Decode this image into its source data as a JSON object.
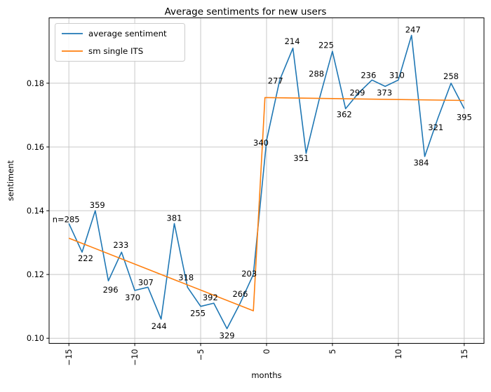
{
  "title": "Average sentiments for new users",
  "xlabel": "months",
  "ylabel": "sentiment",
  "legend": {
    "position": "upper left",
    "entries": [
      {
        "label": "average sentiment",
        "color": "#1f77b4"
      },
      {
        "label": "sm single ITS",
        "color": "#ff7f0e"
      }
    ]
  },
  "colors": {
    "series_blue": "#1f77b4",
    "series_orange": "#ff7f0e",
    "grid": "#c8c8c8",
    "frame": "#000000",
    "text": "#000000",
    "legend_border": "#cccccc"
  },
  "axes": {
    "x_ticks": [
      {
        "value": -15,
        "label": "−15"
      },
      {
        "value": -10,
        "label": "−10"
      },
      {
        "value": -5,
        "label": "−5"
      },
      {
        "value": 0,
        "label": "0"
      },
      {
        "value": 5,
        "label": "5"
      },
      {
        "value": 10,
        "label": "10"
      },
      {
        "value": 15,
        "label": "15"
      }
    ],
    "y_ticks": [
      {
        "value": 0.1,
        "label": "0.10"
      },
      {
        "value": 0.12,
        "label": "0.12"
      },
      {
        "value": 0.14,
        "label": "0.14"
      },
      {
        "value": 0.16,
        "label": "0.16"
      },
      {
        "value": 0.18,
        "label": "0.18"
      }
    ]
  },
  "chart_data": {
    "type": "line",
    "title": "Average sentiments for new users",
    "xlabel": "months",
    "ylabel": "sentiment",
    "xlim": [
      -16.5,
      16.5
    ],
    "ylim": [
      0.0984,
      0.2005
    ],
    "grid": true,
    "legend_position": "upper left",
    "series": [
      {
        "name": "average sentiment",
        "color": "#1f77b4",
        "x": [
          -15,
          -14,
          -13,
          -12,
          -11,
          -10,
          -9,
          -8,
          -7,
          -6,
          -5,
          -4,
          -3,
          -2,
          -1,
          0,
          1,
          2,
          3,
          4,
          5,
          6,
          7,
          8,
          9,
          10,
          11,
          12,
          13,
          14,
          15
        ],
        "y": [
          0.136,
          0.127,
          0.14,
          0.118,
          0.127,
          0.115,
          0.116,
          0.106,
          0.136,
          0.116,
          0.11,
          0.111,
          0.103,
          0.111,
          0.12,
          0.162,
          0.181,
          0.191,
          0.158,
          0.175,
          0.19,
          0.172,
          0.177,
          0.181,
          0.179,
          0.181,
          0.195,
          0.157,
          0.169,
          0.18,
          0.172
        ],
        "point_labels": [
          "n=285",
          "222",
          "359",
          "296",
          "233",
          "370",
          "307",
          "244",
          "381",
          "318",
          "255",
          "392",
          "329",
          "266",
          "203",
          "340",
          "277",
          "214",
          "351",
          "288",
          "225",
          "362",
          "299",
          "236",
          "373",
          "310",
          "247",
          "384",
          "321",
          "258",
          "395"
        ],
        "label_offsets": [
          [
            -4,
            -6
          ],
          [
            5,
            9
          ],
          [
            3,
            -8
          ],
          [
            3,
            13
          ],
          [
            -1,
            -10
          ],
          [
            -3,
            10
          ],
          [
            -3,
            -7
          ],
          [
            -3,
            10
          ],
          [
            0,
            -8
          ],
          [
            -2,
            -14
          ],
          [
            -4,
            10
          ],
          [
            -5,
            -8
          ],
          [
            0,
            10
          ],
          [
            0,
            -13
          ],
          [
            -6,
            -1
          ],
          [
            -8,
            3
          ],
          [
            -6,
            1
          ],
          [
            -1,
            -10
          ],
          [
            -7,
            7
          ],
          [
            -4,
            -36
          ],
          [
            -9,
            -9
          ],
          [
            -2,
            8
          ],
          [
            -2,
            0
          ],
          [
            -5,
            -7
          ],
          [
            -1,
            9
          ],
          [
            -2,
            -7
          ],
          [
            2,
            -8
          ],
          [
            -5,
            9
          ],
          [
            -3,
            13
          ],
          [
            0,
            -10
          ],
          [
            0,
            12
          ]
        ]
      },
      {
        "name": "sm single ITS",
        "color": "#ff7f0e",
        "x": [
          -15,
          -1,
          -0.12,
          15
        ],
        "y": [
          0.1314,
          0.1086,
          0.1755,
          0.1746
        ]
      }
    ]
  }
}
